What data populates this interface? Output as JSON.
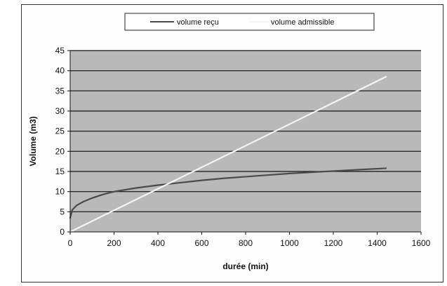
{
  "chart_data": {
    "type": "line",
    "xlabel": "durée (min)",
    "ylabel": "Volume (m3)",
    "xlim": [
      0,
      1600
    ],
    "ylim": [
      0,
      45
    ],
    "x_ticks": [
      0,
      200,
      400,
      600,
      800,
      1000,
      1200,
      1400,
      1600
    ],
    "y_ticks": [
      0,
      5,
      10,
      15,
      20,
      25,
      30,
      35,
      40,
      45
    ],
    "grid": "horizontal",
    "legend_position": "top",
    "series": [
      {
        "name": "volume reçu",
        "color": "#4a4a4a",
        "x": [
          0,
          10,
          30,
          60,
          100,
          150,
          200,
          300,
          400,
          500,
          600,
          700,
          800,
          900,
          1000,
          1100,
          1200,
          1300,
          1440
        ],
        "y": [
          3.5,
          5.5,
          6.6,
          7.5,
          8.4,
          9.3,
          10.0,
          10.9,
          11.6,
          12.2,
          12.8,
          13.3,
          13.7,
          14.1,
          14.5,
          14.8,
          15.1,
          15.4,
          15.8
        ]
      },
      {
        "name": "volume admissible",
        "color": "#f4f4f4",
        "x": [
          0,
          1440
        ],
        "y": [
          0,
          38.5
        ]
      }
    ]
  }
}
